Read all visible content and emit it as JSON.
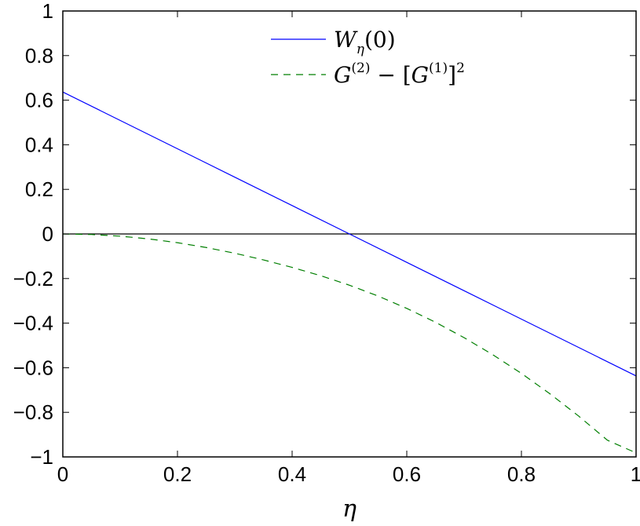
{
  "chart_data": {
    "type": "line",
    "xlabel": "η",
    "ylabel": "",
    "title": "",
    "xlim": [
      0,
      1
    ],
    "ylim": [
      -1,
      1
    ],
    "xticks": [
      0,
      0.2,
      0.4,
      0.6,
      0.8,
      1
    ],
    "xtick_labels": [
      "0",
      "0.2",
      "0.4",
      "0.6",
      "0.8",
      "1"
    ],
    "yticks": [
      -1,
      -0.8,
      -0.6,
      -0.4,
      -0.2,
      0,
      0.2,
      0.4,
      0.6,
      0.8,
      1
    ],
    "ytick_labels": [
      "−1",
      "−0.8",
      "−0.6",
      "−0.4",
      "−0.2",
      "0",
      "0.2",
      "0.4",
      "0.6",
      "0.8",
      "1"
    ],
    "grid": false,
    "legend_position": "top-center",
    "reference_line": {
      "y": 0,
      "color": "#000000"
    },
    "series": [
      {
        "name": "W_η(0)",
        "style": "solid",
        "color": "#0000ff",
        "x": [
          0,
          0.1,
          0.2,
          0.3,
          0.4,
          0.5,
          0.6,
          0.7,
          0.8,
          0.9,
          1
        ],
        "y": [
          0.6366,
          0.5093,
          0.382,
          0.2546,
          0.1273,
          0,
          -0.1273,
          -0.2546,
          -0.382,
          -0.5093,
          -0.6366
        ]
      },
      {
        "name": "G^(2) − [G^(1)]^2",
        "style": "dashed",
        "color": "#007f00",
        "x": [
          0,
          0.05,
          0.1,
          0.15,
          0.2,
          0.25,
          0.3,
          0.35,
          0.4,
          0.45,
          0.5,
          0.55,
          0.6,
          0.65,
          0.7,
          0.75,
          0.8,
          0.85,
          0.9,
          0.95,
          1
        ],
        "y": [
          0,
          -0.0025,
          -0.0099,
          -0.0222,
          -0.0392,
          -0.0607,
          -0.0865,
          -0.1164,
          -0.15,
          -0.1874,
          -0.2298,
          -0.2785,
          -0.3338,
          -0.3959,
          -0.4651,
          -0.5416,
          -0.6256,
          -0.7174,
          -0.8172,
          -0.9251,
          -0.9819
        ]
      }
    ]
  },
  "legend": {
    "series1": {
      "base": "W",
      "sub": "η",
      "tail": "(0)"
    },
    "series2": {
      "g": "G",
      "sup2": "(2)",
      "minus": " − [",
      "g2": "G",
      "sup1": "(1)",
      "close": "]",
      "pow": "2"
    }
  }
}
